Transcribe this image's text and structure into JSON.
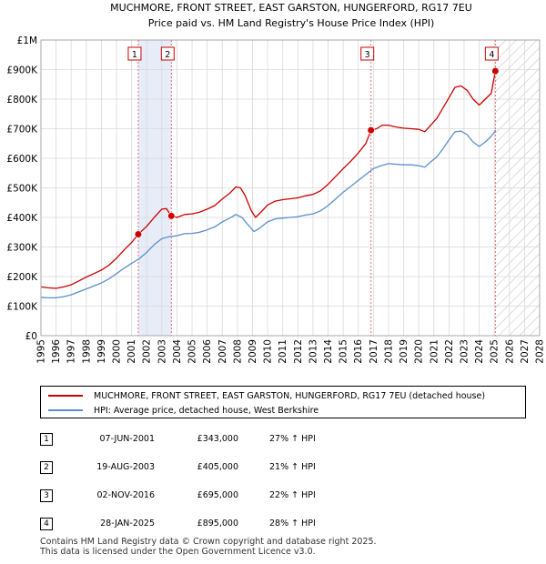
{
  "chart_data": {
    "type": "line",
    "title": "MUCHMORE, FRONT STREET, EAST GARSTON, HUNGERFORD, RG17 7EU",
    "subtitle": "Price paid vs. HM Land Registry's House Price Index (HPI)",
    "xlim": [
      1995,
      2028
    ],
    "ylim": [
      0,
      1000000
    ],
    "x_ticks": [
      "1995",
      "1996",
      "1997",
      "1998",
      "1999",
      "2000",
      "2001",
      "2002",
      "2003",
      "2004",
      "2005",
      "2006",
      "2007",
      "2008",
      "2009",
      "2010",
      "2011",
      "2012",
      "2013",
      "2014",
      "2015",
      "2016",
      "2017",
      "2018",
      "2019",
      "2020",
      "2021",
      "2022",
      "2023",
      "2024",
      "2025",
      "2026",
      "2027",
      "2028"
    ],
    "y_ticks": [
      {
        "value": 0,
        "label": "£0"
      },
      {
        "value": 100000,
        "label": "£100K"
      },
      {
        "value": 200000,
        "label": "£200K"
      },
      {
        "value": 300000,
        "label": "£300K"
      },
      {
        "value": 400000,
        "label": "£400K"
      },
      {
        "value": 500000,
        "label": "£500K"
      },
      {
        "value": 600000,
        "label": "£600K"
      },
      {
        "value": 700000,
        "label": "£700K"
      },
      {
        "value": 800000,
        "label": "£800K"
      },
      {
        "value": 900000,
        "label": "£900K"
      },
      {
        "value": 1000000,
        "label": "£1M"
      }
    ],
    "grid": true,
    "legend_position": "below",
    "series": [
      {
        "name": "MUCHMORE, FRONT STREET, EAST GARSTON, HUNGERFORD, RG17 7EU (detached house)",
        "color": "#cc0000",
        "points": [
          [
            1995.0,
            165000
          ],
          [
            1995.5,
            162000
          ],
          [
            1996.0,
            160000
          ],
          [
            1996.5,
            165000
          ],
          [
            1997.0,
            172000
          ],
          [
            1997.5,
            185000
          ],
          [
            1998.0,
            198000
          ],
          [
            1998.5,
            210000
          ],
          [
            1999.0,
            222000
          ],
          [
            1999.5,
            238000
          ],
          [
            2000.0,
            262000
          ],
          [
            2000.5,
            290000
          ],
          [
            2001.0,
            315000
          ],
          [
            2001.44,
            343000
          ],
          [
            2002.0,
            370000
          ],
          [
            2002.5,
            400000
          ],
          [
            2003.0,
            428000
          ],
          [
            2003.3,
            430000
          ],
          [
            2003.63,
            405000
          ],
          [
            2004.0,
            400000
          ],
          [
            2004.5,
            410000
          ],
          [
            2005.0,
            412000
          ],
          [
            2005.5,
            418000
          ],
          [
            2006.0,
            428000
          ],
          [
            2006.5,
            440000
          ],
          [
            2007.0,
            462000
          ],
          [
            2007.5,
            482000
          ],
          [
            2007.9,
            503000
          ],
          [
            2008.2,
            500000
          ],
          [
            2008.5,
            475000
          ],
          [
            2008.9,
            425000
          ],
          [
            2009.2,
            400000
          ],
          [
            2009.6,
            420000
          ],
          [
            2010.0,
            442000
          ],
          [
            2010.5,
            455000
          ],
          [
            2011.0,
            460000
          ],
          [
            2011.5,
            463000
          ],
          [
            2012.0,
            466000
          ],
          [
            2012.5,
            473000
          ],
          [
            2013.0,
            478000
          ],
          [
            2013.5,
            490000
          ],
          [
            2014.0,
            512000
          ],
          [
            2014.5,
            538000
          ],
          [
            2015.0,
            565000
          ],
          [
            2015.5,
            590000
          ],
          [
            2016.0,
            618000
          ],
          [
            2016.5,
            650000
          ],
          [
            2016.84,
            695000
          ],
          [
            2017.2,
            700000
          ],
          [
            2017.6,
            712000
          ],
          [
            2018.0,
            712000
          ],
          [
            2018.5,
            706000
          ],
          [
            2019.0,
            702000
          ],
          [
            2019.5,
            700000
          ],
          [
            2020.0,
            698000
          ],
          [
            2020.4,
            690000
          ],
          [
            2020.8,
            712000
          ],
          [
            2021.2,
            735000
          ],
          [
            2021.6,
            770000
          ],
          [
            2022.0,
            805000
          ],
          [
            2022.4,
            840000
          ],
          [
            2022.8,
            845000
          ],
          [
            2023.2,
            830000
          ],
          [
            2023.6,
            800000
          ],
          [
            2024.0,
            780000
          ],
          [
            2024.4,
            800000
          ],
          [
            2024.8,
            820000
          ],
          [
            2025.07,
            895000
          ]
        ]
      },
      {
        "name": "HPI: Average price, detached house, West Berkshire",
        "color": "#5b8fcc",
        "points": [
          [
            1995.0,
            130000
          ],
          [
            1995.5,
            128000
          ],
          [
            1996.0,
            128000
          ],
          [
            1996.5,
            132000
          ],
          [
            1997.0,
            138000
          ],
          [
            1997.5,
            148000
          ],
          [
            1998.0,
            158000
          ],
          [
            1998.5,
            168000
          ],
          [
            1999.0,
            178000
          ],
          [
            1999.5,
            192000
          ],
          [
            2000.0,
            210000
          ],
          [
            2000.5,
            228000
          ],
          [
            2001.0,
            245000
          ],
          [
            2001.5,
            260000
          ],
          [
            2002.0,
            282000
          ],
          [
            2002.5,
            308000
          ],
          [
            2003.0,
            328000
          ],
          [
            2003.5,
            335000
          ],
          [
            2004.0,
            338000
          ],
          [
            2004.5,
            345000
          ],
          [
            2005.0,
            346000
          ],
          [
            2005.5,
            350000
          ],
          [
            2006.0,
            358000
          ],
          [
            2006.5,
            368000
          ],
          [
            2007.0,
            385000
          ],
          [
            2007.5,
            398000
          ],
          [
            2007.9,
            410000
          ],
          [
            2008.3,
            400000
          ],
          [
            2008.7,
            375000
          ],
          [
            2009.1,
            352000
          ],
          [
            2009.5,
            365000
          ],
          [
            2010.0,
            385000
          ],
          [
            2010.5,
            395000
          ],
          [
            2011.0,
            398000
          ],
          [
            2011.5,
            400000
          ],
          [
            2012.0,
            402000
          ],
          [
            2012.5,
            408000
          ],
          [
            2013.0,
            412000
          ],
          [
            2013.5,
            422000
          ],
          [
            2014.0,
            440000
          ],
          [
            2014.5,
            462000
          ],
          [
            2015.0,
            485000
          ],
          [
            2015.5,
            505000
          ],
          [
            2016.0,
            525000
          ],
          [
            2016.5,
            545000
          ],
          [
            2017.0,
            565000
          ],
          [
            2017.5,
            575000
          ],
          [
            2018.0,
            582000
          ],
          [
            2018.5,
            580000
          ],
          [
            2019.0,
            578000
          ],
          [
            2019.5,
            578000
          ],
          [
            2020.0,
            575000
          ],
          [
            2020.4,
            570000
          ],
          [
            2020.8,
            588000
          ],
          [
            2021.2,
            605000
          ],
          [
            2021.6,
            632000
          ],
          [
            2022.0,
            662000
          ],
          [
            2022.4,
            690000
          ],
          [
            2022.8,
            692000
          ],
          [
            2023.2,
            680000
          ],
          [
            2023.6,
            655000
          ],
          [
            2024.0,
            640000
          ],
          [
            2024.4,
            655000
          ],
          [
            2024.8,
            675000
          ],
          [
            2025.1,
            695000
          ]
        ]
      }
    ],
    "sales": [
      {
        "label": "1",
        "x": 2001.44,
        "value": 343000
      },
      {
        "label": "2",
        "x": 2003.63,
        "value": 405000
      },
      {
        "label": "3",
        "x": 2016.84,
        "value": 695000
      },
      {
        "label": "4",
        "x": 2025.07,
        "value": 895000
      }
    ],
    "shaded_ranges": [
      [
        2001.44,
        2003.63
      ]
    ],
    "future_hatch_from": 2025.07
  },
  "legend": {
    "property_label": "MUCHMORE, FRONT STREET, EAST GARSTON, HUNGERFORD, RG17 7EU (detached house)",
    "property_color": "#cc0000",
    "hpi_label": "HPI: Average price, detached house, West Berkshire",
    "hpi_color": "#5b8fcc"
  },
  "sales_table": [
    {
      "num": "1",
      "date": "07-JUN-2001",
      "price": "£343,000",
      "hpi": "27% ↑ HPI"
    },
    {
      "num": "2",
      "date": "19-AUG-2003",
      "price": "£405,000",
      "hpi": "21% ↑ HPI"
    },
    {
      "num": "3",
      "date": "02-NOV-2016",
      "price": "£695,000",
      "hpi": "22% ↑ HPI"
    },
    {
      "num": "4",
      "date": "28-JAN-2025",
      "price": "£895,000",
      "hpi": "28% ↑ HPI"
    }
  ],
  "footer": {
    "line1": "Contains HM Land Registry data © Crown copyright and database right 2025.",
    "line2": "This data is licensed under the Open Government Licence v3.0."
  }
}
